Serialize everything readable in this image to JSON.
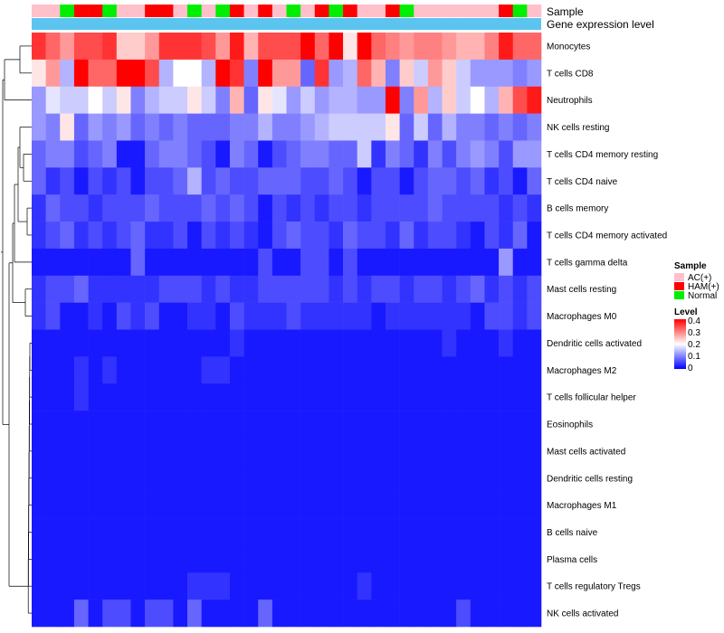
{
  "chart_data": {
    "type": "heatmap",
    "annotation_labels": {
      "sample": "Sample",
      "expression": "Gene expression level"
    },
    "sample_groups": [
      "AC(+)",
      "AC(+)",
      "Normal",
      "HAM(+)",
      "HAM(+)",
      "Normal",
      "AC(+)",
      "AC(+)",
      "HAM(+)",
      "HAM(+)",
      "AC(+)",
      "Normal",
      "AC(+)",
      "Normal",
      "HAM(+)",
      "AC(+)",
      "HAM(+)",
      "AC(+)",
      "Normal",
      "AC(+)",
      "HAM(+)",
      "Normal",
      "HAM(+)",
      "AC(+)",
      "AC(+)",
      "HAM(+)",
      "Normal",
      "AC(+)",
      "AC(+)",
      "AC(+)",
      "AC(+)",
      "AC(+)",
      "AC(+)",
      "HAM(+)",
      "Normal",
      "AC(+)"
    ],
    "rows": [
      {
        "name": "Monocytes",
        "values": [
          0.36,
          0.32,
          0.28,
          0.34,
          0.34,
          0.36,
          0.24,
          0.24,
          0.28,
          0.36,
          0.36,
          0.36,
          0.34,
          0.28,
          0.38,
          0.26,
          0.34,
          0.34,
          0.34,
          0.4,
          0.32,
          0.4,
          0.22,
          0.4,
          0.32,
          0.3,
          0.28,
          0.3,
          0.3,
          0.28,
          0.26,
          0.26,
          0.3,
          0.38,
          0.32,
          0.32
        ]
      },
      {
        "name": "T cells CD8",
        "values": [
          0.22,
          0.28,
          0.14,
          0.4,
          0.32,
          0.32,
          0.4,
          0.4,
          0.34,
          0.14,
          0.2,
          0.2,
          0.14,
          0.4,
          0.36,
          0.1,
          0.4,
          0.28,
          0.28,
          0.08,
          0.36,
          0.12,
          0.14,
          0.32,
          0.26,
          0.1,
          0.24,
          0.16,
          0.28,
          0.24,
          0.16,
          0.12,
          0.12,
          0.12,
          0.1,
          0.12
        ]
      },
      {
        "name": "Neutrophils",
        "values": [
          0.12,
          0.18,
          0.16,
          0.16,
          0.2,
          0.16,
          0.22,
          0.1,
          0.14,
          0.16,
          0.16,
          0.22,
          0.16,
          0.1,
          0.26,
          0.08,
          0.22,
          0.18,
          0.12,
          0.16,
          0.12,
          0.14,
          0.14,
          0.12,
          0.12,
          0.4,
          0.1,
          0.28,
          0.14,
          0.24,
          0.16,
          0.2,
          0.14,
          0.26,
          0.34,
          0.38
        ]
      },
      {
        "name": "NK cells resting",
        "values": [
          0.12,
          0.1,
          0.22,
          0.08,
          0.12,
          0.1,
          0.12,
          0.08,
          0.1,
          0.08,
          0.1,
          0.08,
          0.08,
          0.08,
          0.1,
          0.1,
          0.14,
          0.1,
          0.1,
          0.12,
          0.14,
          0.16,
          0.16,
          0.16,
          0.16,
          0.22,
          0.08,
          0.16,
          0.08,
          0.14,
          0.1,
          0.1,
          0.08,
          0.1,
          0.08,
          0.1
        ]
      },
      {
        "name": "T cells CD4 memory resting",
        "values": [
          0.08,
          0.1,
          0.1,
          0.06,
          0.08,
          0.1,
          0.02,
          0.02,
          0.08,
          0.1,
          0.1,
          0.08,
          0.06,
          0.02,
          0.1,
          0.08,
          0.02,
          0.06,
          0.08,
          0.1,
          0.1,
          0.08,
          0.08,
          0.16,
          0.04,
          0.1,
          0.08,
          0.04,
          0.1,
          0.06,
          0.1,
          0.12,
          0.1,
          0.06,
          0.12,
          0.12
        ]
      },
      {
        "name": "T cells CD4 naive",
        "values": [
          0.08,
          0.04,
          0.06,
          0.02,
          0.06,
          0.04,
          0.06,
          0.02,
          0.06,
          0.06,
          0.08,
          0.14,
          0.06,
          0.08,
          0.06,
          0.06,
          0.08,
          0.08,
          0.08,
          0.06,
          0.06,
          0.08,
          0.06,
          0.02,
          0.06,
          0.06,
          0.02,
          0.06,
          0.08,
          0.08,
          0.06,
          0.08,
          0.04,
          0.06,
          0.02,
          0.08
        ]
      },
      {
        "name": "B cells memory",
        "values": [
          0.04,
          0.08,
          0.06,
          0.06,
          0.04,
          0.06,
          0.06,
          0.06,
          0.08,
          0.06,
          0.06,
          0.06,
          0.08,
          0.06,
          0.08,
          0.06,
          0.02,
          0.06,
          0.04,
          0.06,
          0.04,
          0.06,
          0.06,
          0.04,
          0.06,
          0.06,
          0.06,
          0.06,
          0.08,
          0.06,
          0.06,
          0.06,
          0.06,
          0.04,
          0.06,
          0.04
        ]
      },
      {
        "name": "T cells CD4 memory activated",
        "values": [
          0.04,
          0.06,
          0.08,
          0.04,
          0.06,
          0.04,
          0.06,
          0.08,
          0.04,
          0.04,
          0.06,
          0.02,
          0.06,
          0.04,
          0.06,
          0.04,
          0.02,
          0.06,
          0.08,
          0.06,
          0.06,
          0.04,
          0.08,
          0.06,
          0.06,
          0.04,
          0.08,
          0.04,
          0.06,
          0.06,
          0.04,
          0.02,
          0.06,
          0.04,
          0.08,
          0.02
        ]
      },
      {
        "name": "T cells gamma delta",
        "values": [
          0.02,
          0.02,
          0.02,
          0.02,
          0.02,
          0.02,
          0.02,
          0.08,
          0.02,
          0.02,
          0.02,
          0.02,
          0.02,
          0.02,
          0.02,
          0.02,
          0.06,
          0.02,
          0.02,
          0.06,
          0.06,
          0.02,
          0.06,
          0.02,
          0.02,
          0.02,
          0.02,
          0.02,
          0.02,
          0.02,
          0.02,
          0.02,
          0.02,
          0.12,
          0.02,
          0.02
        ]
      },
      {
        "name": "Mast cells resting",
        "values": [
          0.04,
          0.06,
          0.06,
          0.08,
          0.04,
          0.04,
          0.04,
          0.04,
          0.04,
          0.06,
          0.06,
          0.06,
          0.04,
          0.06,
          0.04,
          0.04,
          0.06,
          0.06,
          0.06,
          0.06,
          0.06,
          0.04,
          0.06,
          0.04,
          0.06,
          0.06,
          0.04,
          0.06,
          0.06,
          0.04,
          0.06,
          0.08,
          0.04,
          0.06,
          0.04,
          0.06
        ]
      },
      {
        "name": "Macrophages M0",
        "values": [
          0.04,
          0.06,
          0.02,
          0.02,
          0.04,
          0.02,
          0.06,
          0.04,
          0.06,
          0.02,
          0.02,
          0.04,
          0.04,
          0.02,
          0.06,
          0.04,
          0.04,
          0.04,
          0.06,
          0.04,
          0.04,
          0.04,
          0.04,
          0.04,
          0.02,
          0.04,
          0.04,
          0.04,
          0.04,
          0.04,
          0.04,
          0.02,
          0.06,
          0.06,
          0.04,
          0.06
        ]
      },
      {
        "name": "Dendritic cells activated",
        "values": [
          0.02,
          0.02,
          0.02,
          0.02,
          0.02,
          0.02,
          0.02,
          0.02,
          0.02,
          0.02,
          0.02,
          0.02,
          0.02,
          0.02,
          0.04,
          0.02,
          0.02,
          0.02,
          0.02,
          0.02,
          0.02,
          0.02,
          0.02,
          0.02,
          0.02,
          0.02,
          0.02,
          0.02,
          0.02,
          0.04,
          0.02,
          0.02,
          0.02,
          0.04,
          0.02,
          0.02
        ]
      },
      {
        "name": "Macrophages M2",
        "values": [
          0.02,
          0.02,
          0.02,
          0.04,
          0.02,
          0.04,
          0.02,
          0.02,
          0.02,
          0.02,
          0.02,
          0.02,
          0.04,
          0.04,
          0.02,
          0.02,
          0.02,
          0.02,
          0.02,
          0.02,
          0.02,
          0.02,
          0.02,
          0.02,
          0.02,
          0.02,
          0.02,
          0.02,
          0.02,
          0.02,
          0.02,
          0.02,
          0.02,
          0.02,
          0.02,
          0.02
        ]
      },
      {
        "name": "T cells follicular helper",
        "values": [
          0.02,
          0.02,
          0.02,
          0.04,
          0.02,
          0.02,
          0.02,
          0.02,
          0.02,
          0.02,
          0.02,
          0.02,
          0.02,
          0.02,
          0.02,
          0.02,
          0.02,
          0.02,
          0.02,
          0.02,
          0.02,
          0.02,
          0.02,
          0.02,
          0.02,
          0.02,
          0.02,
          0.02,
          0.02,
          0.02,
          0.02,
          0.02,
          0.02,
          0.02,
          0.02,
          0.02
        ]
      },
      {
        "name": "Eosinophils",
        "values": [
          0.02,
          0.02,
          0.02,
          0.02,
          0.02,
          0.02,
          0.02,
          0.02,
          0.02,
          0.02,
          0.02,
          0.02,
          0.02,
          0.02,
          0.02,
          0.02,
          0.02,
          0.02,
          0.02,
          0.02,
          0.02,
          0.02,
          0.02,
          0.02,
          0.02,
          0.02,
          0.02,
          0.02,
          0.02,
          0.02,
          0.02,
          0.02,
          0.02,
          0.02,
          0.02,
          0.02
        ]
      },
      {
        "name": "Mast cells activated",
        "values": [
          0.02,
          0.02,
          0.02,
          0.02,
          0.02,
          0.02,
          0.02,
          0.02,
          0.02,
          0.02,
          0.02,
          0.02,
          0.02,
          0.02,
          0.02,
          0.02,
          0.02,
          0.02,
          0.02,
          0.02,
          0.02,
          0.02,
          0.02,
          0.02,
          0.02,
          0.02,
          0.02,
          0.02,
          0.02,
          0.02,
          0.02,
          0.02,
          0.02,
          0.02,
          0.02,
          0.02
        ]
      },
      {
        "name": "Dendritic cells resting",
        "values": [
          0.02,
          0.02,
          0.02,
          0.02,
          0.02,
          0.02,
          0.02,
          0.02,
          0.02,
          0.02,
          0.02,
          0.02,
          0.02,
          0.02,
          0.02,
          0.02,
          0.02,
          0.02,
          0.02,
          0.02,
          0.02,
          0.02,
          0.02,
          0.02,
          0.02,
          0.02,
          0.02,
          0.02,
          0.02,
          0.02,
          0.02,
          0.02,
          0.02,
          0.02,
          0.02,
          0.02
        ]
      },
      {
        "name": "Macrophages M1",
        "values": [
          0.02,
          0.02,
          0.02,
          0.02,
          0.02,
          0.02,
          0.02,
          0.02,
          0.02,
          0.02,
          0.02,
          0.02,
          0.02,
          0.02,
          0.02,
          0.02,
          0.02,
          0.02,
          0.02,
          0.02,
          0.02,
          0.02,
          0.02,
          0.02,
          0.02,
          0.02,
          0.02,
          0.02,
          0.02,
          0.02,
          0.02,
          0.02,
          0.02,
          0.02,
          0.02,
          0.02
        ]
      },
      {
        "name": "B cells naive",
        "values": [
          0.02,
          0.02,
          0.02,
          0.02,
          0.02,
          0.02,
          0.02,
          0.02,
          0.02,
          0.02,
          0.02,
          0.02,
          0.02,
          0.02,
          0.02,
          0.02,
          0.02,
          0.02,
          0.02,
          0.02,
          0.02,
          0.02,
          0.02,
          0.02,
          0.02,
          0.02,
          0.02,
          0.02,
          0.02,
          0.02,
          0.02,
          0.02,
          0.02,
          0.02,
          0.02,
          0.02
        ]
      },
      {
        "name": "Plasma cells",
        "values": [
          0.02,
          0.02,
          0.02,
          0.02,
          0.02,
          0.02,
          0.02,
          0.02,
          0.02,
          0.02,
          0.02,
          0.02,
          0.02,
          0.02,
          0.02,
          0.02,
          0.02,
          0.02,
          0.02,
          0.02,
          0.02,
          0.02,
          0.02,
          0.02,
          0.02,
          0.02,
          0.02,
          0.02,
          0.02,
          0.02,
          0.02,
          0.02,
          0.02,
          0.02,
          0.02,
          0.02
        ]
      },
      {
        "name": "T cells regulatory  Tregs",
        "values": [
          0.02,
          0.02,
          0.02,
          0.02,
          0.02,
          0.02,
          0.02,
          0.02,
          0.02,
          0.02,
          0.02,
          0.04,
          0.04,
          0.04,
          0.02,
          0.02,
          0.02,
          0.02,
          0.02,
          0.02,
          0.02,
          0.02,
          0.02,
          0.04,
          0.02,
          0.02,
          0.02,
          0.02,
          0.02,
          0.02,
          0.02,
          0.02,
          0.02,
          0.02,
          0.02,
          0.02
        ]
      },
      {
        "name": "NK cells activated",
        "values": [
          0.02,
          0.02,
          0.02,
          0.08,
          0.02,
          0.06,
          0.06,
          0.02,
          0.06,
          0.06,
          0.02,
          0.08,
          0.02,
          0.02,
          0.02,
          0.02,
          0.08,
          0.02,
          0.02,
          0.02,
          0.02,
          0.02,
          0.02,
          0.02,
          0.02,
          0.02,
          0.02,
          0.02,
          0.02,
          0.02,
          0.06,
          0.02,
          0.02,
          0.02,
          0.02,
          0.02
        ]
      }
    ],
    "legend": {
      "sample_title": "Sample",
      "sample_items": [
        {
          "label": "AC(+)",
          "color": "#ffc0cb"
        },
        {
          "label": "HAM(+)",
          "color": "#ff0000"
        },
        {
          "label": "Normal",
          "color": "#00ee00"
        }
      ],
      "level_title": "Level",
      "level_ticks": [
        "0.4",
        "0.3",
        "0.2",
        "0.1",
        "0"
      ]
    },
    "color_scale": {
      "min": 0,
      "mid": 0.2,
      "max": 0.4,
      "low": "#0000ff",
      "midc": "#ffffff",
      "high": "#ff0000"
    },
    "expression_color": "#5bc4ef"
  }
}
